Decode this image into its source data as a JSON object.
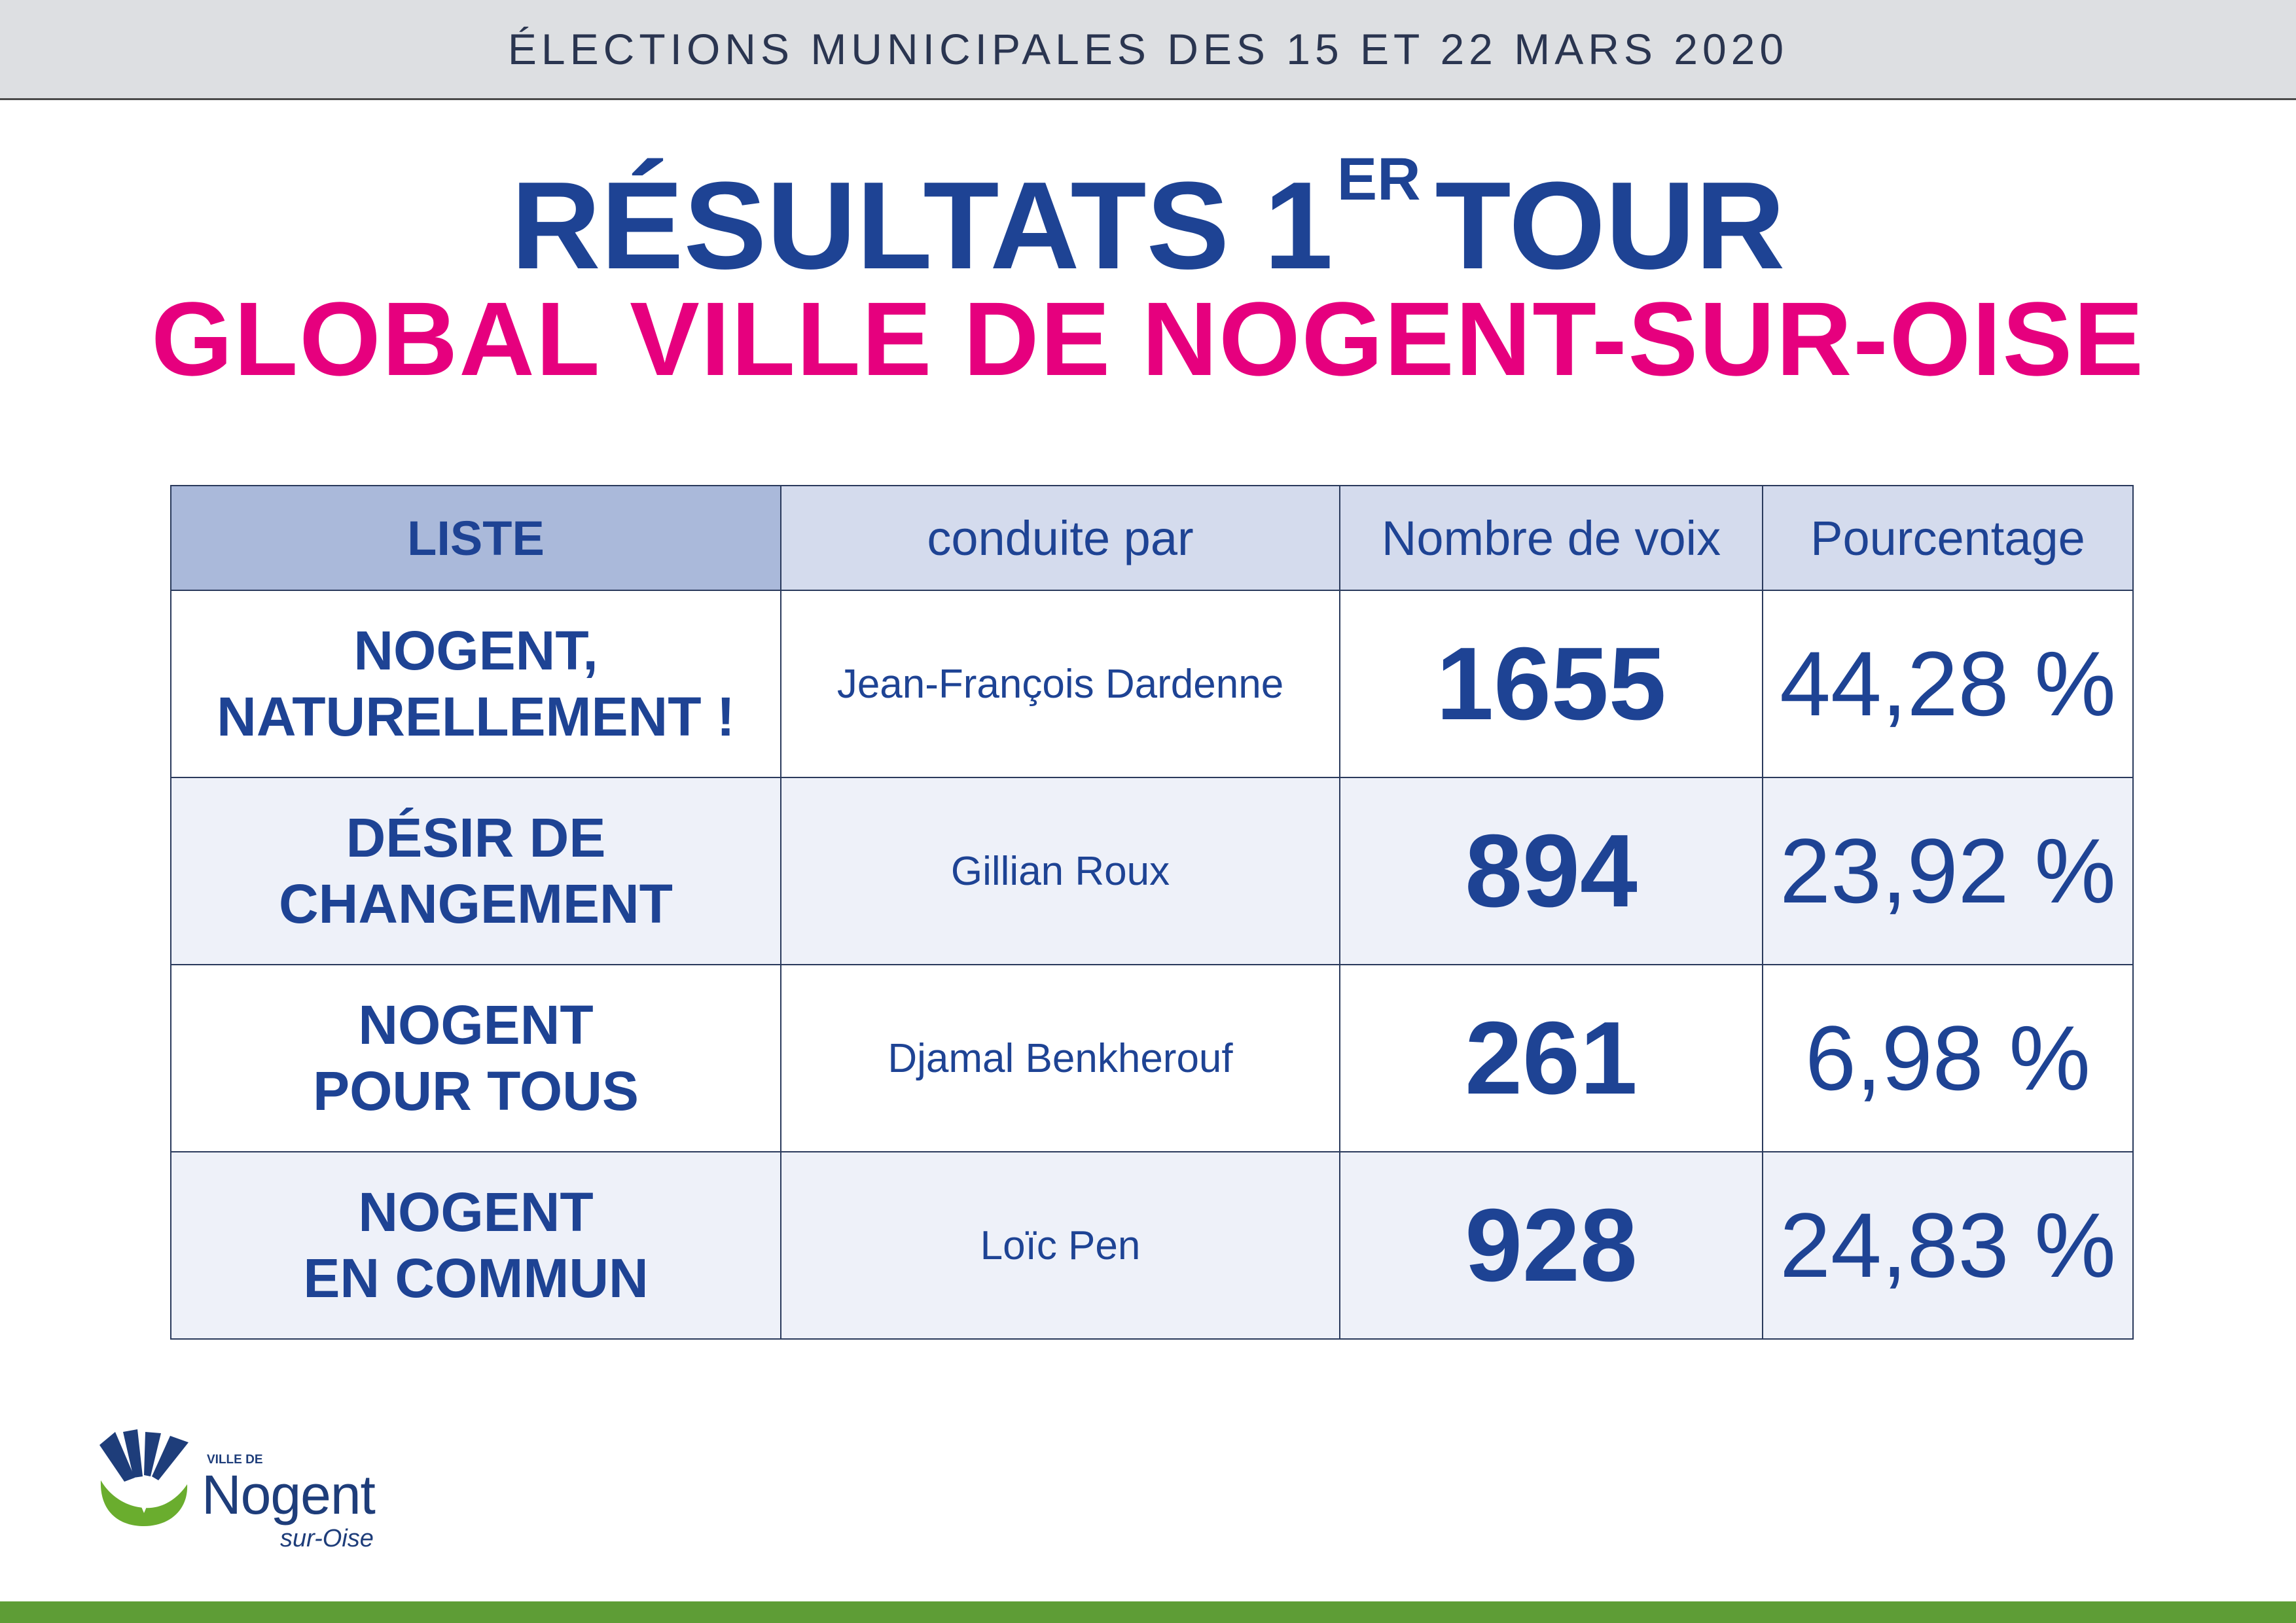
{
  "header": {
    "election_title": "ÉLECTIONS MUNICIPALES DES 15 ET 22 MARS 2020"
  },
  "title": {
    "main": "RÉSULTATS 1",
    "sup": "ER",
    "rest": "TOUR"
  },
  "subtitle": "GLOBAL VILLE DE NOGENT-SUR-OISE",
  "table": {
    "columns": [
      "LISTE",
      "conduite par",
      "Nombre de voix",
      "Pourcentage"
    ],
    "rows": [
      {
        "liste_line1": "NOGENT,",
        "liste_line2": "NATURELLEMENT !",
        "leader": "Jean-François Dardenne",
        "votes": "1655",
        "pct": "44,28 %"
      },
      {
        "liste_line1": "DÉSIR DE",
        "liste_line2": "CHANGEMENT",
        "leader": "Gillian Roux",
        "votes": "894",
        "pct": "23,92 %"
      },
      {
        "liste_line1": "NOGENT",
        "liste_line2": "POUR TOUS",
        "leader": "Djamal Benkherouf",
        "votes": "261",
        "pct": "6,98 %"
      },
      {
        "liste_line1": "NOGENT",
        "liste_line2": "EN COMMUN",
        "leader": "Loïc Pen",
        "votes": "928",
        "pct": "24,83 %"
      }
    ]
  },
  "logo": {
    "ville_de": "VILLE DE",
    "name": "Nogent",
    "suffix": "sur-Oise"
  },
  "colors": {
    "navy": "#1e4394",
    "magenta": "#e6007e",
    "green": "#5e9d36",
    "header_cell": "#d4dbed",
    "liste_header": "#aab9da"
  }
}
